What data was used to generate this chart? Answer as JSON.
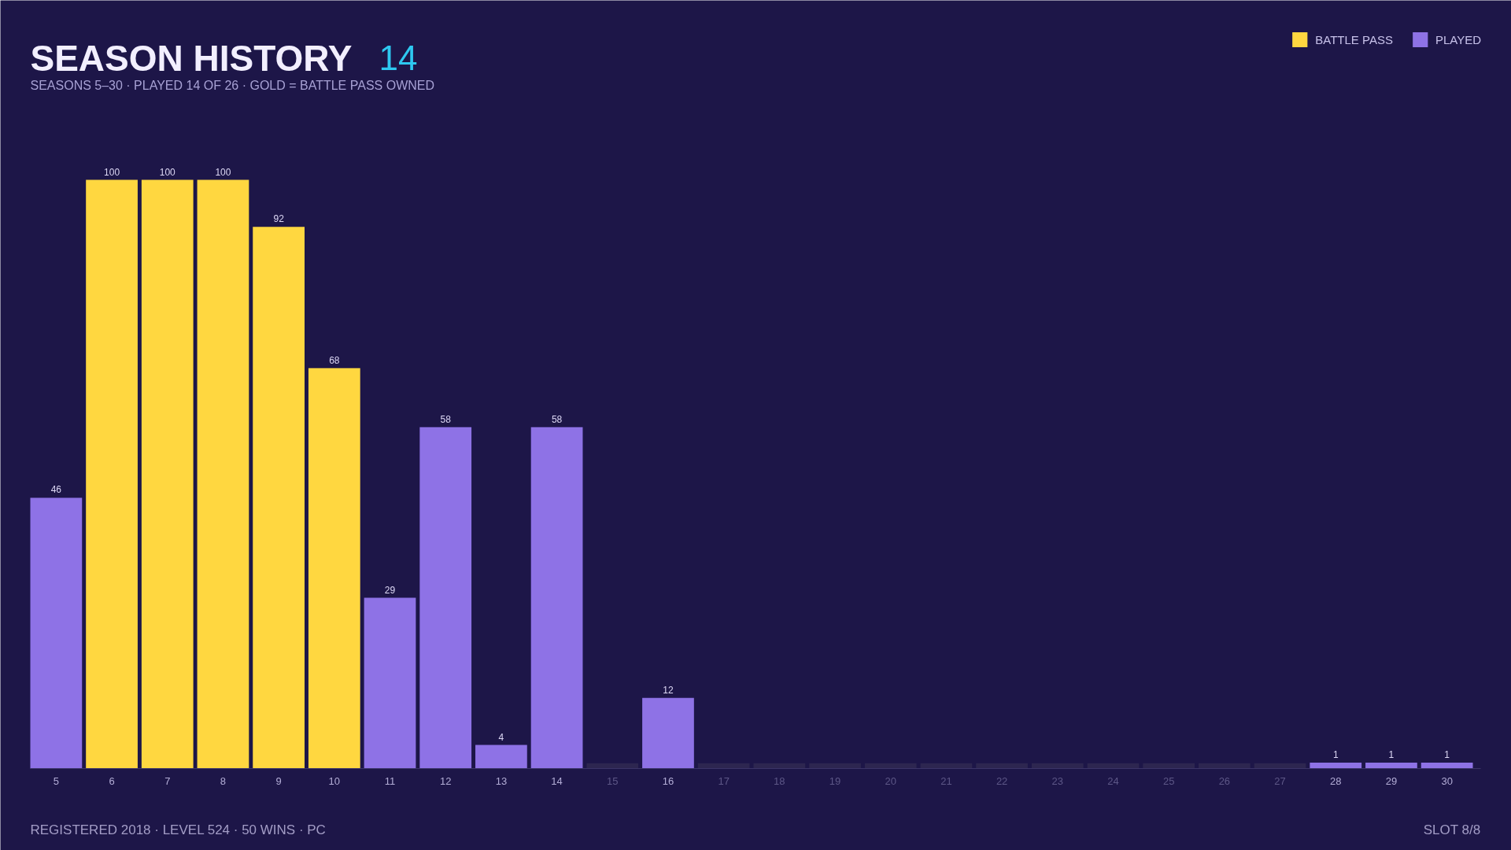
{
  "chart_data": {
    "type": "bar",
    "title": "SEASON HISTORY",
    "subtitle": "SEASONS 5–30 · PLAYED 14 OF 26 · GOLD = BATTLE PASS OWNED",
    "annotations": [
      "14",
      "REGISTERED 2018 · LEVEL 524 · 50 WINS · PC",
      "SLOT 8/8"
    ],
    "categories": [
      "5",
      "6",
      "7",
      "8",
      "9",
      "10",
      "11",
      "12",
      "13",
      "14",
      "15",
      "16",
      "17",
      "18",
      "19",
      "20",
      "21",
      "22",
      "23",
      "24",
      "25",
      "26",
      "27",
      "28",
      "29",
      "30"
    ],
    "series": [
      {
        "name": "BATTLE PASS",
        "color": "#ffd740",
        "values": [
          null,
          100,
          100,
          100,
          92,
          68,
          null,
          null,
          null,
          null,
          null,
          null,
          null,
          null,
          null,
          null,
          null,
          null,
          null,
          null,
          null,
          null,
          null,
          null,
          null,
          null
        ],
        "value_labels": [
          null,
          "100",
          "100",
          "100",
          "92",
          "68",
          null,
          null,
          null,
          null,
          null,
          null,
          null,
          null,
          null,
          null,
          null,
          null,
          null,
          null,
          null,
          null,
          null,
          null,
          null,
          null
        ]
      },
      {
        "name": "PLAYED",
        "color": "#8e72e6",
        "values": [
          46,
          null,
          null,
          null,
          null,
          null,
          29,
          58,
          4,
          58,
          null,
          12,
          null,
          null,
          null,
          null,
          null,
          null,
          null,
          null,
          null,
          null,
          null,
          1,
          1,
          1
        ],
        "value_labels": [
          "46",
          null,
          null,
          null,
          null,
          null,
          "29",
          "58",
          "4",
          "58",
          null,
          "12",
          null,
          null,
          null,
          null,
          null,
          null,
          null,
          null,
          null,
          null,
          null,
          "1",
          "1",
          "1"
        ]
      },
      {
        "color": "#2d2650",
        "values": [
          null,
          null,
          null,
          null,
          null,
          null,
          null,
          null,
          null,
          null,
          0.9,
          null,
          0.9,
          0.9,
          0.9,
          0.9,
          0.9,
          0.9,
          0.9,
          0.9,
          0.9,
          0.9,
          0.9,
          null,
          null,
          null
        ]
      }
    ],
    "legend": "top right",
    "tick_labels": "x"
  }
}
